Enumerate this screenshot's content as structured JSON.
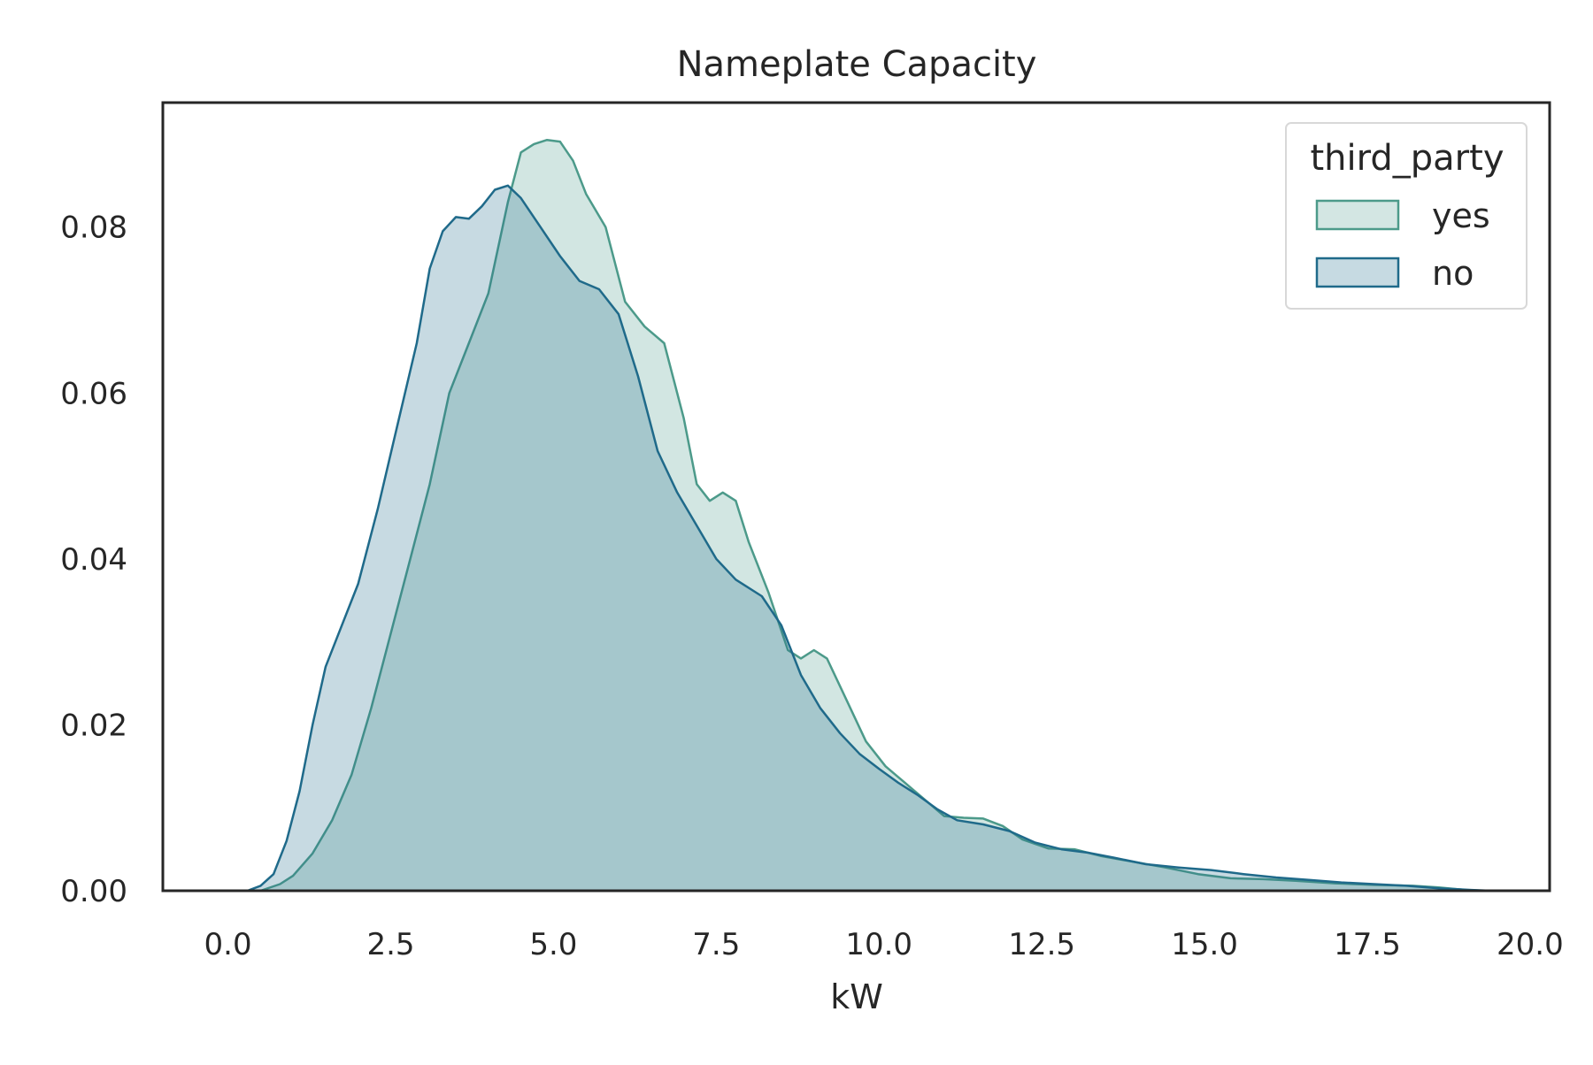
{
  "chart_data": {
    "type": "area",
    "title": "Nameplate Capacity",
    "xlabel": "kW",
    "ylabel": "",
    "xlim": [
      -1.0,
      20.3
    ],
    "ylim": [
      0,
      0.095
    ],
    "xticks": [
      0.0,
      2.5,
      5.0,
      7.5,
      10.0,
      12.5,
      15.0,
      17.5,
      20.0
    ],
    "xtick_labels": [
      "0.0",
      "2.5",
      "5.0",
      "7.5",
      "10.0",
      "12.5",
      "15.0",
      "17.5",
      "20.0"
    ],
    "yticks": [
      0.0,
      0.02,
      0.04,
      0.06,
      0.08
    ],
    "ytick_labels": [
      "0.00",
      "0.02",
      "0.04",
      "0.06",
      "0.08"
    ],
    "grid": false,
    "legend": {
      "title": "third_party",
      "placement": "top-right"
    },
    "series": [
      {
        "name": "yes",
        "color": "#4c9a8a",
        "fill": "#d3e6e3",
        "points": [
          [
            0.0,
            0.0
          ],
          [
            0.5,
            0.0
          ],
          [
            0.8,
            0.0008
          ],
          [
            1.0,
            0.0018
          ],
          [
            1.3,
            0.0045
          ],
          [
            1.6,
            0.0085
          ],
          [
            1.9,
            0.014
          ],
          [
            2.2,
            0.022
          ],
          [
            2.5,
            0.031
          ],
          [
            2.8,
            0.04
          ],
          [
            3.1,
            0.049
          ],
          [
            3.4,
            0.06
          ],
          [
            3.7,
            0.066
          ],
          [
            4.0,
            0.072
          ],
          [
            4.3,
            0.083
          ],
          [
            4.5,
            0.089
          ],
          [
            4.7,
            0.09
          ],
          [
            4.9,
            0.0905
          ],
          [
            5.1,
            0.0903
          ],
          [
            5.3,
            0.088
          ],
          [
            5.5,
            0.084
          ],
          [
            5.8,
            0.08
          ],
          [
            6.1,
            0.071
          ],
          [
            6.4,
            0.068
          ],
          [
            6.7,
            0.066
          ],
          [
            7.0,
            0.057
          ],
          [
            7.2,
            0.049
          ],
          [
            7.4,
            0.047
          ],
          [
            7.6,
            0.048
          ],
          [
            7.8,
            0.047
          ],
          [
            8.0,
            0.042
          ],
          [
            8.3,
            0.036
          ],
          [
            8.6,
            0.029
          ],
          [
            8.8,
            0.028
          ],
          [
            9.0,
            0.029
          ],
          [
            9.2,
            0.028
          ],
          [
            9.5,
            0.023
          ],
          [
            9.8,
            0.018
          ],
          [
            10.1,
            0.015
          ],
          [
            10.4,
            0.013
          ],
          [
            10.7,
            0.011
          ],
          [
            11.0,
            0.009
          ],
          [
            11.3,
            0.0088
          ],
          [
            11.6,
            0.0087
          ],
          [
            11.9,
            0.0078
          ],
          [
            12.2,
            0.0062
          ],
          [
            12.6,
            0.0051
          ],
          [
            13.0,
            0.005
          ],
          [
            13.4,
            0.0042
          ],
          [
            13.9,
            0.0035
          ],
          [
            14.4,
            0.0028
          ],
          [
            14.9,
            0.002
          ],
          [
            15.4,
            0.0015
          ],
          [
            15.9,
            0.0014
          ],
          [
            16.4,
            0.0012
          ],
          [
            17.0,
            0.0009
          ],
          [
            17.6,
            0.0007
          ],
          [
            18.2,
            0.0006
          ],
          [
            18.6,
            0.0004
          ],
          [
            19.0,
            0.0001
          ],
          [
            19.3,
            0.0
          ]
        ]
      },
      {
        "name": "no",
        "color": "#1f6a8a",
        "fill": "#c6dae2",
        "points": [
          [
            0.0,
            0.0
          ],
          [
            0.3,
            0.0
          ],
          [
            0.5,
            0.0006
          ],
          [
            0.7,
            0.002
          ],
          [
            0.9,
            0.006
          ],
          [
            1.1,
            0.012
          ],
          [
            1.3,
            0.02
          ],
          [
            1.5,
            0.027
          ],
          [
            1.7,
            0.031
          ],
          [
            2.0,
            0.037
          ],
          [
            2.3,
            0.046
          ],
          [
            2.6,
            0.056
          ],
          [
            2.9,
            0.066
          ],
          [
            3.1,
            0.075
          ],
          [
            3.3,
            0.0795
          ],
          [
            3.5,
            0.0812
          ],
          [
            3.7,
            0.081
          ],
          [
            3.9,
            0.0825
          ],
          [
            4.1,
            0.0845
          ],
          [
            4.3,
            0.085
          ],
          [
            4.5,
            0.0835
          ],
          [
            4.8,
            0.08
          ],
          [
            5.1,
            0.0765
          ],
          [
            5.4,
            0.0735
          ],
          [
            5.7,
            0.0725
          ],
          [
            6.0,
            0.0695
          ],
          [
            6.3,
            0.062
          ],
          [
            6.6,
            0.053
          ],
          [
            6.9,
            0.048
          ],
          [
            7.2,
            0.044
          ],
          [
            7.5,
            0.04
          ],
          [
            7.8,
            0.0375
          ],
          [
            8.2,
            0.0355
          ],
          [
            8.5,
            0.032
          ],
          [
            8.8,
            0.026
          ],
          [
            9.1,
            0.022
          ],
          [
            9.4,
            0.019
          ],
          [
            9.7,
            0.0165
          ],
          [
            10.0,
            0.0147
          ],
          [
            10.3,
            0.013
          ],
          [
            10.6,
            0.0115
          ],
          [
            10.9,
            0.0098
          ],
          [
            11.2,
            0.0085
          ],
          [
            11.6,
            0.008
          ],
          [
            12.0,
            0.0072
          ],
          [
            12.4,
            0.0058
          ],
          [
            12.8,
            0.005
          ],
          [
            13.2,
            0.0046
          ],
          [
            13.6,
            0.004
          ],
          [
            14.1,
            0.0032
          ],
          [
            14.6,
            0.0028
          ],
          [
            15.1,
            0.0025
          ],
          [
            15.6,
            0.002
          ],
          [
            16.1,
            0.0016
          ],
          [
            16.6,
            0.0013
          ],
          [
            17.1,
            0.001
          ],
          [
            17.6,
            0.0008
          ],
          [
            18.1,
            0.0006
          ],
          [
            18.6,
            0.0003
          ],
          [
            19.1,
            0.0001
          ],
          [
            19.4,
            0.0
          ]
        ]
      }
    ]
  }
}
